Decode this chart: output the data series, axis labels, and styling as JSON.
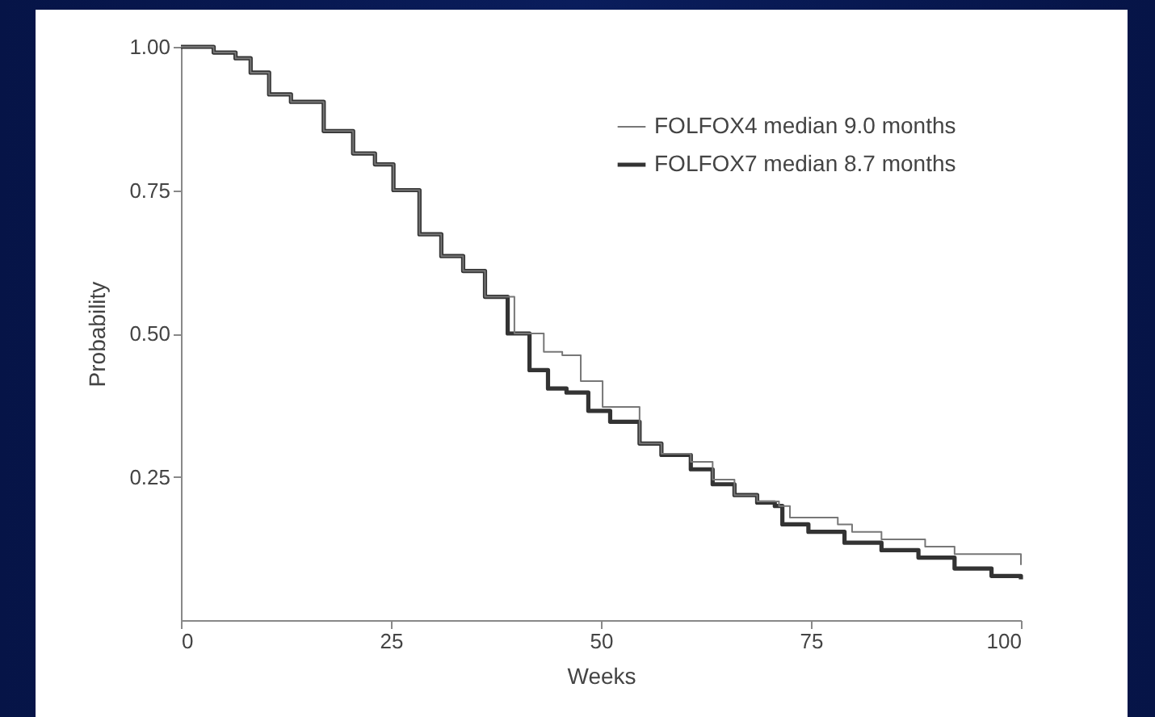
{
  "chart_data": {
    "type": "step",
    "xlabel": "Weeks",
    "ylabel": "Probability",
    "xlim": [
      0,
      100
    ],
    "ylim": [
      0,
      1
    ],
    "xticks": [
      0,
      25,
      50,
      75,
      100
    ],
    "yticks": [
      0.25,
      {
        "value": 0.5,
        "label": "0.50"
      },
      0.75,
      {
        "value": 1,
        "label": "1.00"
      }
    ],
    "grid": false,
    "legend": "top right",
    "line_style": "solid",
    "marker": "none",
    "series": [
      {
        "name": "FOLFOX4 median 9.0 months",
        "color": "#777777",
        "x": [
          0,
          3.9,
          6.5,
          8.3,
          10.5,
          13.1,
          17,
          20.5,
          23.1,
          25.3,
          28.4,
          31,
          33.6,
          36.2,
          39.7,
          43.2,
          45.4,
          47.6,
          50.2,
          54.6,
          57.2,
          60.7,
          63.3,
          65.9,
          68.6,
          71.2,
          72.5,
          78.2,
          79.9,
          83.4,
          88.6,
          92.1,
          100
        ],
        "values": [
          1,
          0.99,
          0.98,
          0.955,
          0.917,
          0.904,
          0.853,
          0.814,
          0.795,
          0.75,
          0.673,
          0.635,
          0.609,
          0.564,
          0.5,
          0.468,
          0.462,
          0.417,
          0.372,
          0.308,
          0.29,
          0.276,
          0.245,
          0.218,
          0.207,
          0.199,
          0.179,
          0.167,
          0.154,
          0.141,
          0.128,
          0.115,
          0.096
        ]
      },
      {
        "name": "FOLFOX7 median 8.7 months",
        "color": "#333333",
        "x": [
          0,
          3.9,
          6.5,
          8.3,
          10.5,
          13.1,
          17,
          20.5,
          23.1,
          25.3,
          28.4,
          31,
          33.6,
          36.2,
          38.9,
          41.5,
          43.7,
          45.9,
          48.5,
          51.1,
          54.6,
          57.2,
          60.7,
          63.3,
          65.9,
          68.6,
          70.7,
          71.6,
          74.7,
          79,
          83.4,
          87.8,
          92.1,
          96.5,
          100
        ],
        "values": [
          1,
          0.99,
          0.98,
          0.955,
          0.917,
          0.904,
          0.853,
          0.814,
          0.795,
          0.75,
          0.673,
          0.635,
          0.609,
          0.564,
          0.5,
          0.436,
          0.404,
          0.397,
          0.365,
          0.346,
          0.308,
          0.288,
          0.263,
          0.237,
          0.218,
          0.205,
          0.199,
          0.167,
          0.154,
          0.135,
          0.122,
          0.109,
          0.09,
          0.077,
          0.071
        ]
      }
    ]
  }
}
